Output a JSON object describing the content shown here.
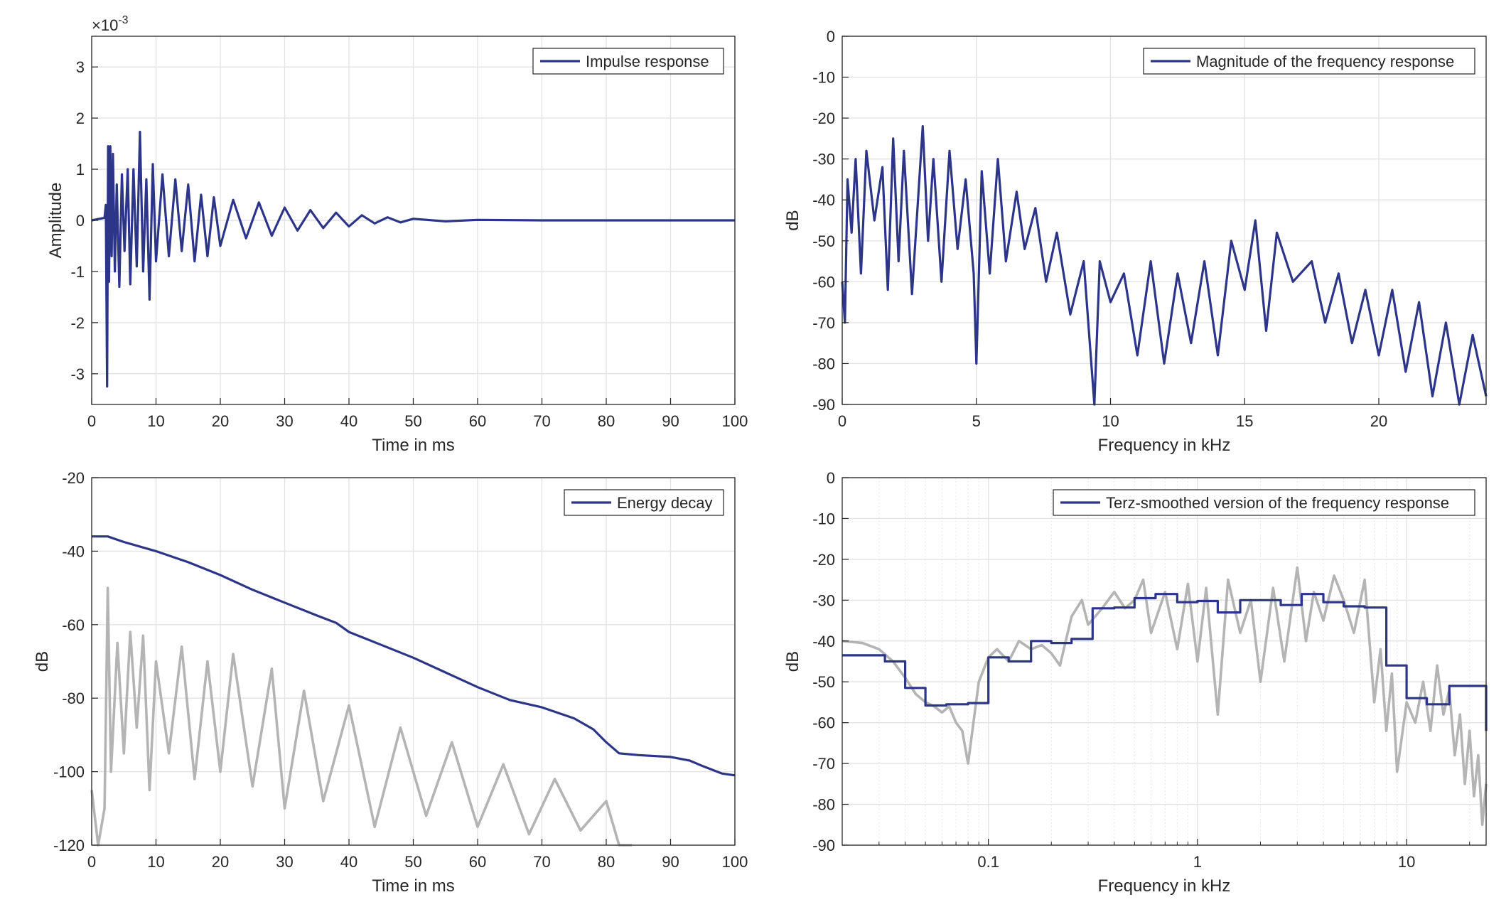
{
  "chart_data": [
    {
      "id": "impulse",
      "type": "line",
      "xlabel": "Time in ms",
      "ylabel": "Amplitude",
      "exponent_label": "×10^-3",
      "exponent_base": "×10",
      "exponent_power": "-3",
      "xlim": [
        0,
        100
      ],
      "ylim": [
        -3.6,
        3.6
      ],
      "xticks": [
        0,
        10,
        20,
        30,
        40,
        50,
        60,
        70,
        80,
        90,
        100
      ],
      "yticks": [
        -3,
        -2,
        -1,
        0,
        1,
        2,
        3
      ],
      "grid": true,
      "legend": "top-right",
      "series": [
        {
          "name": "Impulse response",
          "color": "#2c3587",
          "x": [
            0,
            2.0,
            2.2,
            2.4,
            2.55,
            2.7,
            2.9,
            3.1,
            3.3,
            3.6,
            3.9,
            4.3,
            4.7,
            5.1,
            5.6,
            6.0,
            6.5,
            7.0,
            7.5,
            8.0,
            8.5,
            9.0,
            9.5,
            10.0,
            11,
            12,
            13,
            14,
            15,
            16,
            17,
            18,
            19,
            20,
            22,
            24,
            26,
            28,
            30,
            32,
            34,
            36,
            38,
            40,
            42,
            44,
            46,
            48,
            50,
            55,
            60,
            70,
            80,
            90,
            100
          ],
          "y": [
            0,
            0.05,
            0.3,
            -3.25,
            1.45,
            -1.2,
            1.45,
            -0.7,
            1.3,
            -1.0,
            0.7,
            -1.3,
            0.9,
            -0.6,
            1.0,
            -1.25,
            1.0,
            -0.9,
            1.73,
            -1.0,
            0.8,
            -1.55,
            1.1,
            -0.8,
            0.9,
            -0.7,
            0.8,
            -0.6,
            0.7,
            -0.8,
            0.5,
            -0.7,
            0.45,
            -0.5,
            0.4,
            -0.35,
            0.35,
            -0.3,
            0.25,
            -0.2,
            0.2,
            -0.15,
            0.15,
            -0.12,
            0.1,
            -0.06,
            0.06,
            -0.04,
            0.03,
            -0.02,
            0.01,
            0,
            0,
            0,
            0
          ]
        }
      ]
    },
    {
      "id": "magnitude",
      "type": "line",
      "xlabel": "Frequency in kHz",
      "ylabel": "dB",
      "xlim": [
        0,
        24
      ],
      "ylim": [
        -90,
        0
      ],
      "xticks": [
        0,
        5,
        10,
        15,
        20
      ],
      "yticks": [
        0,
        -10,
        -20,
        -30,
        -40,
        -50,
        -60,
        -70,
        -80,
        -90
      ],
      "grid": true,
      "legend": "top-right",
      "series": [
        {
          "name": "Magnitude of the frequency response",
          "color": "#2c3587",
          "x": [
            0,
            0.1,
            0.2,
            0.35,
            0.5,
            0.7,
            0.9,
            1.2,
            1.5,
            1.7,
            1.9,
            2.1,
            2.3,
            2.6,
            3.0,
            3.2,
            3.4,
            3.7,
            4.0,
            4.3,
            4.6,
            4.9,
            5.0,
            5.2,
            5.5,
            5.8,
            6.1,
            6.5,
            6.8,
            7.2,
            7.6,
            8.0,
            8.5,
            9.0,
            9.4,
            9.6,
            10.0,
            10.5,
            11.0,
            11.5,
            12.0,
            12.5,
            13.0,
            13.5,
            14.0,
            14.5,
            15.0,
            15.4,
            15.8,
            16.2,
            16.8,
            17.5,
            18.0,
            18.5,
            19.0,
            19.5,
            20.0,
            20.5,
            21.0,
            21.5,
            22.0,
            22.5,
            23.0,
            23.5,
            24.0
          ],
          "y": [
            -60,
            -70,
            -35,
            -48,
            -30,
            -58,
            -28,
            -45,
            -32,
            -62,
            -25,
            -55,
            -28,
            -63,
            -22,
            -50,
            -30,
            -60,
            -28,
            -52,
            -35,
            -58,
            -80,
            -33,
            -58,
            -30,
            -55,
            -38,
            -52,
            -42,
            -60,
            -48,
            -68,
            -55,
            -90,
            -55,
            -65,
            -58,
            -78,
            -55,
            -80,
            -58,
            -75,
            -55,
            -78,
            -50,
            -62,
            -45,
            -72,
            -48,
            -60,
            -55,
            -70,
            -58,
            -75,
            -62,
            -78,
            -62,
            -82,
            -65,
            -88,
            -70,
            -90,
            -73,
            -88
          ]
        }
      ]
    },
    {
      "id": "decay",
      "type": "line",
      "xlabel": "Time in ms",
      "ylabel": "dB",
      "xlim": [
        0,
        100
      ],
      "ylim": [
        -120,
        -20
      ],
      "xticks": [
        0,
        10,
        20,
        30,
        40,
        50,
        60,
        70,
        80,
        90,
        100
      ],
      "yticks": [
        -20,
        -40,
        -60,
        -80,
        -100,
        -120
      ],
      "grid": true,
      "legend": "top-right",
      "series": [
        {
          "name": "Energy decay",
          "color": "#2c3587",
          "x": [
            0,
            2.5,
            5,
            10,
            15,
            20,
            25,
            30,
            35,
            38,
            40,
            45,
            50,
            55,
            60,
            65,
            70,
            75,
            78,
            80,
            82,
            85,
            90,
            93,
            95,
            98,
            100
          ],
          "y": [
            -36,
            -36,
            -37.5,
            -40,
            -43,
            -46.5,
            -50.5,
            -54,
            -57.5,
            -59.5,
            -62,
            -65.5,
            -69,
            -73,
            -77,
            -80.5,
            -82.5,
            -85.5,
            -88.5,
            -92,
            -95,
            -95.5,
            -96,
            -97,
            -98.5,
            -100.5,
            -101
          ]
        },
        {
          "name": "",
          "color": "#b4b4b4",
          "x": [
            0,
            1,
            2,
            2.5,
            3,
            4,
            5,
            6,
            7,
            8,
            9,
            10,
            12,
            14,
            16,
            18,
            20,
            22,
            25,
            28,
            30,
            33,
            36,
            40,
            44,
            48,
            52,
            56,
            60,
            64,
            68,
            72,
            76,
            80,
            82,
            84
          ],
          "y": [
            -105,
            -120,
            -110,
            -50,
            -100,
            -65,
            -95,
            -62,
            -88,
            -63,
            -105,
            -70,
            -95,
            -66,
            -102,
            -70,
            -100,
            -68,
            -104,
            -72,
            -110,
            -78,
            -108,
            -82,
            -115,
            -88,
            -112,
            -92,
            -115,
            -98,
            -117,
            -102,
            -116,
            -108,
            -120,
            -120
          ]
        }
      ]
    },
    {
      "id": "terz",
      "type": "line",
      "xlabel": "Frequency in kHz",
      "ylabel": "dB",
      "xscale": "log",
      "xlim": [
        0.02,
        24
      ],
      "ylim": [
        -90,
        0
      ],
      "xticks": [
        0.1,
        1,
        10
      ],
      "xticklabels": [
        "0.1",
        "1",
        "10"
      ],
      "yticks": [
        0,
        -10,
        -20,
        -30,
        -40,
        -50,
        -60,
        -70,
        -80,
        -90
      ],
      "grid": true,
      "legend": "top-right",
      "series": [
        {
          "name": "Terz-smoothed version of the frequency response",
          "color": "#2c3587",
          "step": true,
          "x": [
            0.02,
            0.032,
            0.04,
            0.05,
            0.063,
            0.08,
            0.1,
            0.125,
            0.16,
            0.2,
            0.25,
            0.315,
            0.4,
            0.5,
            0.63,
            0.8,
            1.0,
            1.25,
            1.6,
            2.0,
            2.5,
            3.15,
            4.0,
            5.0,
            6.3,
            8.0,
            10.0,
            12.5,
            16.0,
            24.0
          ],
          "y": [
            -43.5,
            -45,
            -51.5,
            -55.8,
            -55.5,
            -55.2,
            -44,
            -45,
            -40,
            -40.5,
            -39.5,
            -32,
            -31.8,
            -29.5,
            -28.5,
            -30.5,
            -30.2,
            -33,
            -30,
            -30,
            -31.2,
            -28.5,
            -30.5,
            -31.5,
            -31.8,
            -46,
            -54,
            -55.5,
            -51,
            -62
          ]
        },
        {
          "name": "",
          "color": "#b4b4b4",
          "x": [
            0.02,
            0.025,
            0.03,
            0.035,
            0.04,
            0.045,
            0.05,
            0.055,
            0.06,
            0.065,
            0.07,
            0.075,
            0.08,
            0.09,
            0.1,
            0.11,
            0.125,
            0.14,
            0.16,
            0.18,
            0.2,
            0.22,
            0.25,
            0.28,
            0.3,
            0.35,
            0.4,
            0.45,
            0.5,
            0.55,
            0.6,
            0.7,
            0.8,
            0.9,
            1.0,
            1.1,
            1.25,
            1.4,
            1.6,
            1.8,
            2.0,
            2.3,
            2.6,
            3.0,
            3.3,
            3.6,
            4.0,
            4.5,
            5.0,
            5.6,
            6.3,
            7.0,
            7.5,
            8.0,
            8.5,
            9.0,
            10,
            11,
            12,
            13,
            14,
            15,
            16,
            17,
            18,
            19,
            20,
            21,
            22,
            23,
            24
          ],
          "y": [
            -40,
            -40.5,
            -42,
            -45,
            -49,
            -53,
            -55,
            -56,
            -57.5,
            -56,
            -60,
            -62,
            -70,
            -50,
            -44,
            -42,
            -45,
            -40,
            -42,
            -41,
            -43,
            -46,
            -34,
            -30,
            -36,
            -32,
            -28,
            -32,
            -30,
            -25,
            -38,
            -28,
            -42,
            -26,
            -45,
            -27,
            -58,
            -25,
            -38,
            -30,
            -50,
            -27,
            -45,
            -22,
            -40,
            -28,
            -35,
            -24,
            -30,
            -38,
            -25,
            -55,
            -42,
            -62,
            -48,
            -72,
            -55,
            -60,
            -50,
            -62,
            -46,
            -58,
            -52,
            -68,
            -58,
            -75,
            -62,
            -78,
            -68,
            -85,
            -75
          ]
        }
      ]
    }
  ]
}
